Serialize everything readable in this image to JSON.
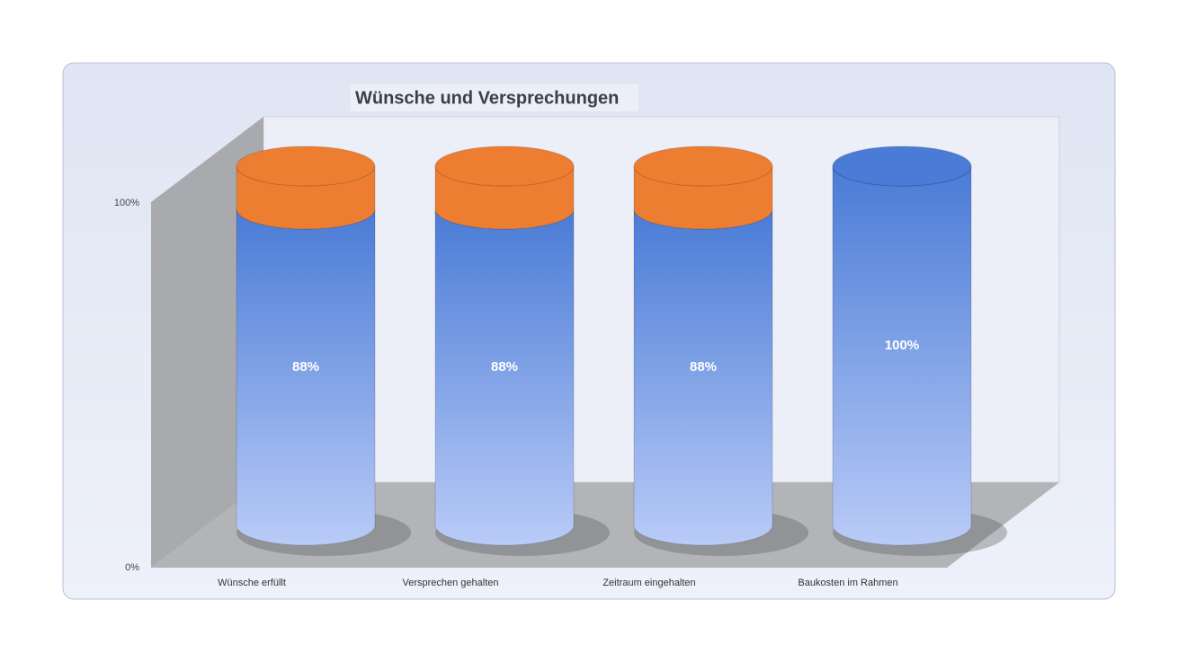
{
  "chart_data": {
    "type": "cylinder-stacked",
    "title": "Wünsche und Versprechungen",
    "categories": [
      "Wünsche erfüllt",
      "Versprechen gehalten",
      "Zeitraum eingehalten",
      "Baukosten im Rahmen"
    ],
    "series": [
      {
        "color": "#4a7bd6",
        "values": [
          88,
          88,
          88,
          100
        ],
        "value_labels": [
          "88%",
          "88%",
          "88%",
          "100%"
        ]
      },
      {
        "color": "#ed7d31",
        "values": [
          12,
          12,
          12,
          0
        ]
      }
    ],
    "ylim": [
      0,
      100
    ],
    "yticks": [
      {
        "value": 0,
        "label": "0%"
      },
      {
        "value": 100,
        "label": "100%"
      }
    ]
  }
}
